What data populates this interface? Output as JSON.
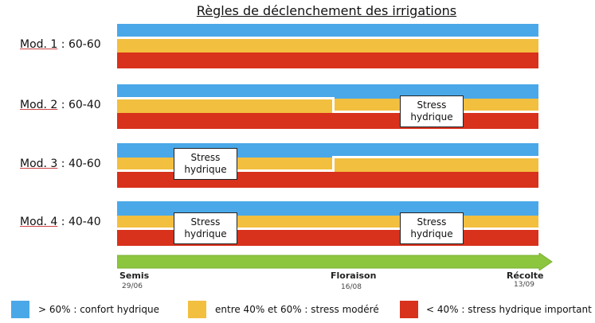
{
  "title": "Règles de déclenchement des irrigations",
  "colors": {
    "comfort": "#4aa8e8",
    "moderate": "#f3bf3f",
    "severe": "#d8311c",
    "timeline": "#8cc63f"
  },
  "models": [
    {
      "name": "Mod. 1",
      "rule": " : 60-60",
      "thresholds": [
        "60",
        "60"
      ],
      "stress_boxes": []
    },
    {
      "name": "Mod. 2",
      "rule": " : 60-40",
      "thresholds": [
        "60",
        "40"
      ],
      "stress_boxes": [
        {
          "label": "Stress hydrique",
          "phase": 2
        }
      ]
    },
    {
      "name": "Mod. 3",
      "rule": " : 40-60",
      "thresholds": [
        "40",
        "60"
      ],
      "stress_boxes": [
        {
          "label": "Stress hydrique",
          "phase": 1
        }
      ]
    },
    {
      "name": "Mod. 4",
      "rule": " : 40-40",
      "thresholds": [
        "40",
        "40"
      ],
      "stress_boxes": [
        {
          "label": "Stress hydrique",
          "phase": 1
        },
        {
          "label": "Stress hydrique",
          "phase": 2
        }
      ]
    }
  ],
  "timeline": [
    {
      "stage": "Semis",
      "date": "29/06"
    },
    {
      "stage": "Floraison",
      "date": "16/08"
    },
    {
      "stage": "Récolte",
      "date": "13/09"
    }
  ],
  "legend": [
    {
      "label": "> 60% : confort hydrique",
      "color": "#4aa8e8"
    },
    {
      "label": "entre 40% et 60% : stress modéré",
      "color": "#f3bf3f"
    },
    {
      "label": "< 40% : stress hydrique important",
      "color": "#d8311c"
    }
  ]
}
